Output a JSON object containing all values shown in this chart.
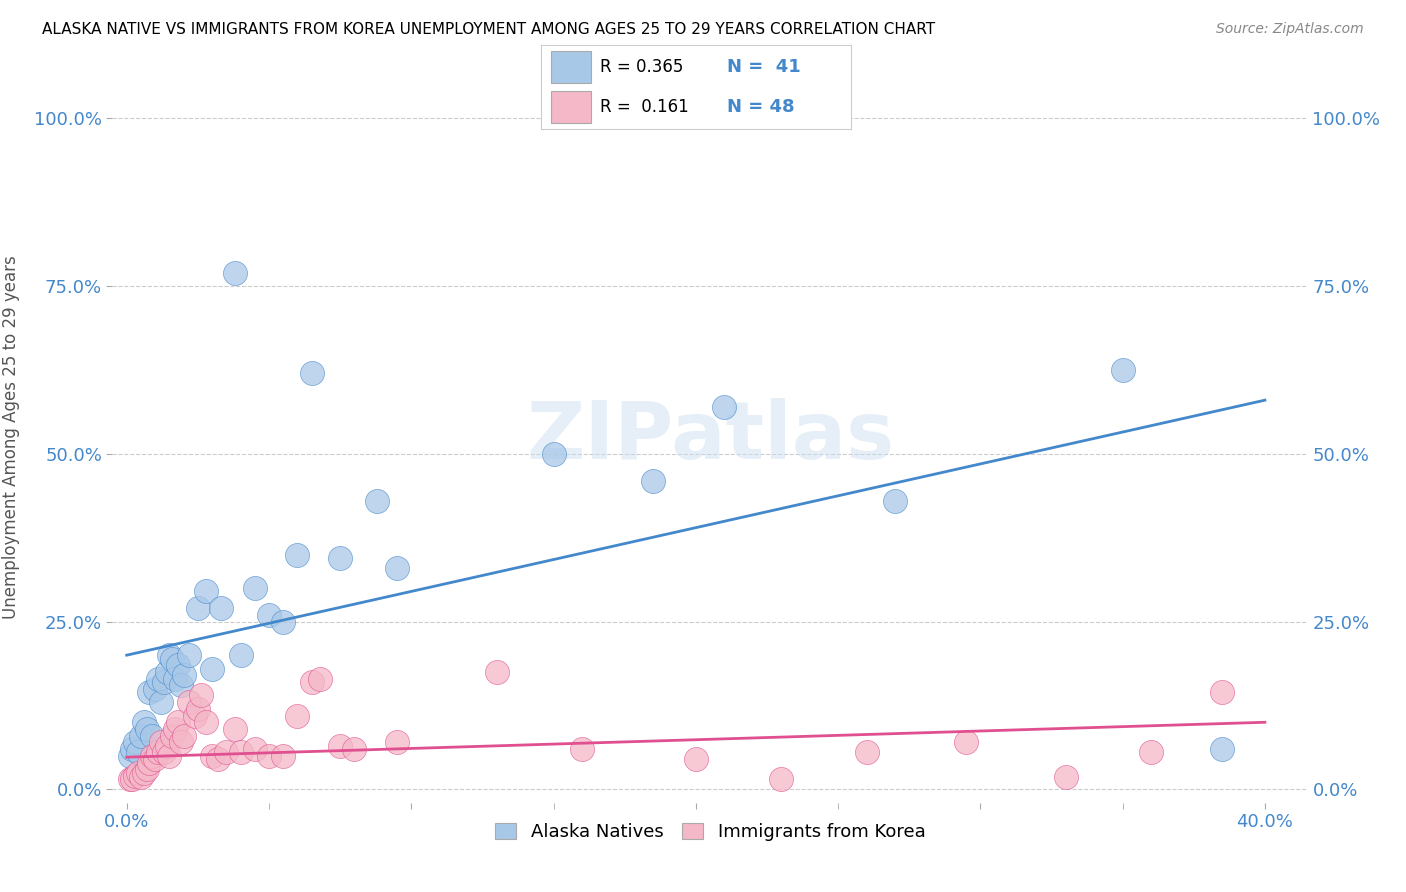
{
  "title": "ALASKA NATIVE VS IMMIGRANTS FROM KOREA UNEMPLOYMENT AMONG AGES 25 TO 29 YEARS CORRELATION CHART",
  "source": "Source: ZipAtlas.com",
  "ylabel": "Unemployment Among Ages 25 to 29 years",
  "legend_label_blue": "Alaska Natives",
  "legend_label_pink": "Immigrants from Korea",
  "blue_color": "#a8c8e8",
  "pink_color": "#f4b8c8",
  "line_blue": "#4488cc",
  "line_pink": "#e05090",
  "watermark": "ZIPatlas",
  "blue_scatter_x": [
    0.001,
    0.002,
    0.003,
    0.004,
    0.005,
    0.006,
    0.007,
    0.008,
    0.009,
    0.01,
    0.011,
    0.012,
    0.013,
    0.014,
    0.015,
    0.016,
    0.017,
    0.018,
    0.019,
    0.02,
    0.022,
    0.025,
    0.028,
    0.03,
    0.033,
    0.038,
    0.04,
    0.045,
    0.05,
    0.055,
    0.06,
    0.065,
    0.075,
    0.088,
    0.095,
    0.15,
    0.185,
    0.21,
    0.27,
    0.35,
    0.385
  ],
  "blue_scatter_y": [
    0.05,
    0.06,
    0.07,
    0.055,
    0.08,
    0.1,
    0.09,
    0.145,
    0.08,
    0.15,
    0.165,
    0.13,
    0.16,
    0.175,
    0.2,
    0.195,
    0.165,
    0.185,
    0.155,
    0.17,
    0.2,
    0.27,
    0.295,
    0.18,
    0.27,
    0.77,
    0.2,
    0.3,
    0.26,
    0.25,
    0.35,
    0.62,
    0.345,
    0.43,
    0.33,
    0.5,
    0.46,
    0.57,
    0.43,
    0.625,
    0.06
  ],
  "pink_scatter_x": [
    0.001,
    0.002,
    0.003,
    0.004,
    0.005,
    0.006,
    0.007,
    0.008,
    0.009,
    0.01,
    0.011,
    0.012,
    0.013,
    0.014,
    0.015,
    0.016,
    0.017,
    0.018,
    0.019,
    0.02,
    0.022,
    0.024,
    0.025,
    0.026,
    0.028,
    0.03,
    0.032,
    0.035,
    0.038,
    0.04,
    0.045,
    0.05,
    0.055,
    0.06,
    0.065,
    0.068,
    0.075,
    0.08,
    0.095,
    0.13,
    0.16,
    0.2,
    0.23,
    0.26,
    0.295,
    0.33,
    0.36,
    0.385
  ],
  "pink_scatter_y": [
    0.015,
    0.015,
    0.02,
    0.025,
    0.018,
    0.025,
    0.03,
    0.04,
    0.05,
    0.045,
    0.055,
    0.07,
    0.055,
    0.065,
    0.05,
    0.08,
    0.09,
    0.1,
    0.07,
    0.08,
    0.13,
    0.11,
    0.12,
    0.14,
    0.1,
    0.05,
    0.045,
    0.055,
    0.09,
    0.055,
    0.06,
    0.05,
    0.05,
    0.11,
    0.16,
    0.165,
    0.065,
    0.06,
    0.07,
    0.175,
    0.06,
    0.045,
    0.015,
    0.055,
    0.07,
    0.018,
    0.055,
    0.145
  ],
  "blue_trendline_x": [
    0.0,
    0.4
  ],
  "blue_trendline_y": [
    0.2,
    0.58
  ],
  "pink_trendline_x": [
    0.0,
    0.4
  ],
  "pink_trendline_y": [
    0.048,
    0.1
  ],
  "xlim": [
    -0.005,
    0.415
  ],
  "ylim": [
    -0.02,
    1.07
  ],
  "xtick_vals": [
    0.0,
    0.1,
    0.2,
    0.3,
    0.4
  ],
  "xtick_labels": [
    "0.0%",
    "",
    "",
    "",
    "40.0%"
  ],
  "ytick_vals": [
    0.0,
    0.25,
    0.5,
    0.75,
    1.0
  ],
  "ytick_labels": [
    "0.0%",
    "25.0%",
    "50.0%",
    "75.0%",
    "100.0%"
  ]
}
